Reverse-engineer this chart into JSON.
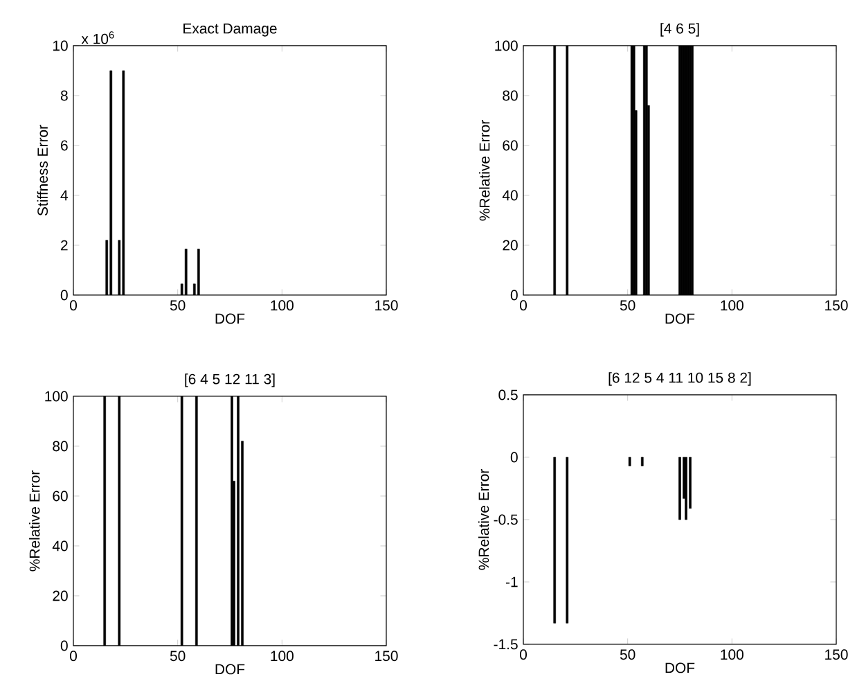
{
  "chart_data": [
    {
      "type": "bar",
      "title": "Exact Damage",
      "xlabel": "DOF",
      "ylabel": "Stiffness Error",
      "annotations": [
        "x 10$^{6}$"
      ],
      "color": "#000000",
      "x": [
        16,
        18,
        22,
        24,
        52,
        54,
        58,
        60
      ],
      "values": [
        2.2,
        9,
        2.2,
        9,
        0.45,
        1.85,
        0.45,
        1.85
      ],
      "xlim": [
        0,
        150
      ],
      "ylim": [
        0,
        10
      ],
      "xticks": [
        0,
        50,
        100,
        150
      ],
      "yticks": [
        0,
        2,
        4,
        6,
        8,
        10
      ]
    },
    {
      "type": "bar",
      "title": "[4 6 5]",
      "xlabel": "DOF",
      "ylabel": "%Relative Error",
      "color": "#000000",
      "x": [
        15,
        21,
        52,
        53,
        54,
        58,
        59,
        60,
        75,
        76,
        77,
        78,
        79,
        80,
        81
      ],
      "values": [
        100,
        100,
        100,
        100,
        74,
        100,
        100,
        76,
        100,
        100,
        100,
        100,
        100,
        100,
        100
      ],
      "xlim": [
        0,
        150
      ],
      "ylim": [
        0,
        100
      ],
      "xticks": [
        0,
        50,
        100,
        150
      ],
      "yticks": [
        0,
        20,
        40,
        60,
        80,
        100
      ]
    },
    {
      "type": "bar",
      "title": "[6 4 5 12 11 3]",
      "xlabel": "DOF",
      "ylabel": "%Relative Error",
      "color": "#000000",
      "x": [
        15,
        22,
        52,
        59,
        76,
        77,
        79,
        81
      ],
      "values": [
        100,
        100,
        100,
        100,
        100,
        66,
        100,
        82
      ],
      "xlim": [
        0,
        150
      ],
      "ylim": [
        0,
        100
      ],
      "xticks": [
        0,
        50,
        100,
        150
      ],
      "yticks": [
        0,
        20,
        40,
        60,
        80,
        100
      ]
    },
    {
      "type": "bar",
      "title": "[6 12 5 4 11 10 15 8 2]",
      "xlabel": "DOF",
      "ylabel": "%Relative Error",
      "color": "#000000",
      "x": [
        15,
        21,
        51,
        57,
        75,
        77,
        78,
        80
      ],
      "values": [
        -1.33,
        -1.33,
        -0.07,
        -0.07,
        -0.5,
        -0.33,
        -0.5,
        -0.41
      ],
      "xlim": [
        0,
        150
      ],
      "ylim": [
        -1.5,
        0.5
      ],
      "xticks": [
        0,
        50,
        100,
        150
      ],
      "yticks": [
        -1.5,
        -1,
        -0.5,
        0,
        0.5
      ]
    }
  ]
}
